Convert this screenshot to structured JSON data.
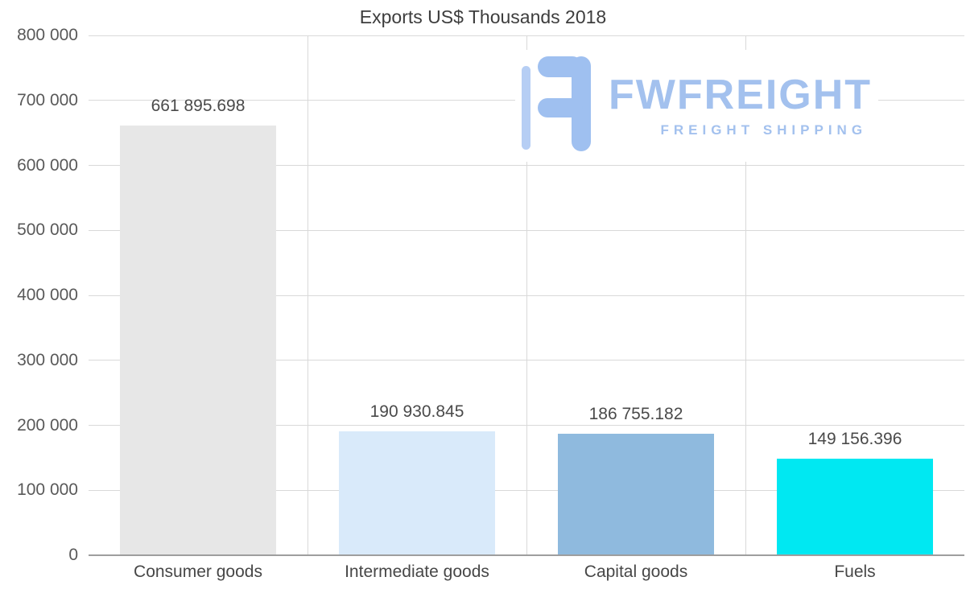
{
  "chart_data": {
    "type": "bar",
    "title": "Exports US$ Thousands 2018",
    "categories": [
      "Consumer goods",
      "Intermediate goods",
      "Capital goods",
      "Fuels"
    ],
    "values": [
      661895.698,
      190930.845,
      186755.182,
      149156.396
    ],
    "value_labels": [
      "661 895.698",
      "190 930.845",
      "186 755.182",
      "149 156.396"
    ],
    "bar_colors": [
      "#e7e7e7",
      "#d9eafa",
      "#8fbade",
      "#00e8f2"
    ],
    "xlabel": "",
    "ylabel": "",
    "ylim": [
      0,
      800000
    ],
    "y_ticks": [
      {
        "value": 0,
        "label": "0"
      },
      {
        "value": 100000,
        "label": "100 000"
      },
      {
        "value": 200000,
        "label": "200 000"
      },
      {
        "value": 300000,
        "label": "300 000"
      },
      {
        "value": 400000,
        "label": "400 000"
      },
      {
        "value": 500000,
        "label": "500 000"
      },
      {
        "value": 600000,
        "label": "600 000"
      },
      {
        "value": 700000,
        "label": "700 000"
      },
      {
        "value": 800000,
        "label": "800 000"
      }
    ],
    "grid": true,
    "legend": false
  },
  "watermark": {
    "brand": "FWFREIGHT",
    "tagline": "FREIGHT SHIPPING",
    "color": "#a3c1ee"
  }
}
